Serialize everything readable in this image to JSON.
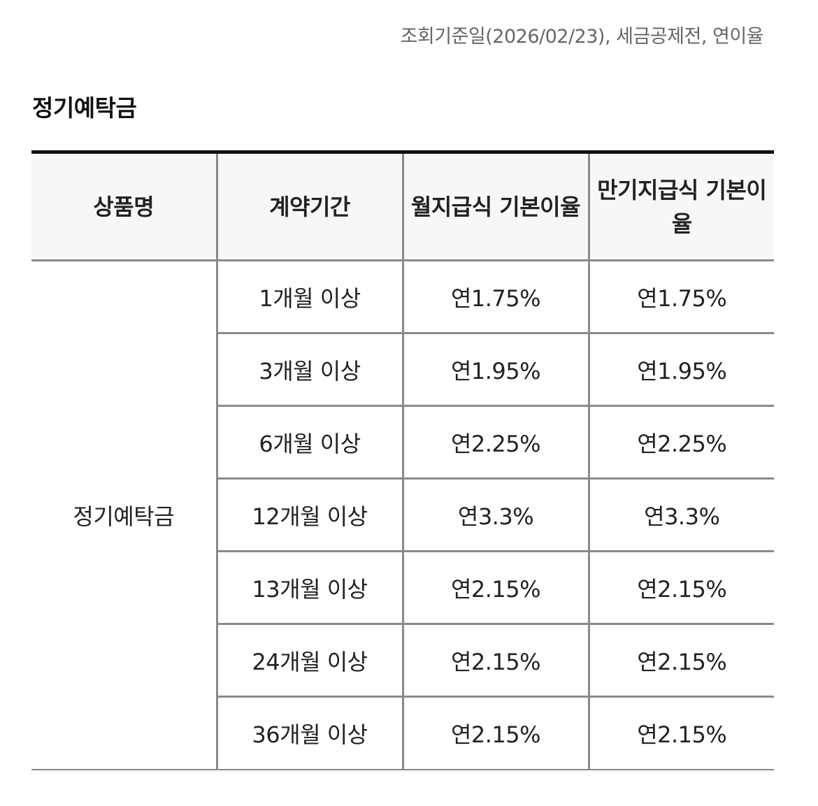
{
  "header": {
    "reference_note": "조회기준일(2026/02/23), 세금공제전, 연이율"
  },
  "section": {
    "title": "정기예탁금"
  },
  "table": {
    "columns": [
      "상품명",
      "계약기간",
      "월지급식 기본이율",
      "만기지급식 기본이율"
    ],
    "product_name": "정기예탁금",
    "rows": [
      {
        "period": "1개월 이상",
        "monthly_rate": "연1.75%",
        "maturity_rate": "연1.75%"
      },
      {
        "period": "3개월 이상",
        "monthly_rate": "연1.95%",
        "maturity_rate": "연1.95%"
      },
      {
        "period": "6개월 이상",
        "monthly_rate": "연2.25%",
        "maturity_rate": "연2.25%"
      },
      {
        "period": "12개월 이상",
        "monthly_rate": "연3.3%",
        "maturity_rate": "연3.3%"
      },
      {
        "period": "13개월 이상",
        "monthly_rate": "연2.15%",
        "maturity_rate": "연2.15%"
      },
      {
        "period": "24개월 이상",
        "monthly_rate": "연2.15%",
        "maturity_rate": "연2.15%"
      },
      {
        "period": "36개월 이상",
        "monthly_rate": "연2.15%",
        "maturity_rate": "연2.15%"
      }
    ]
  },
  "colors": {
    "top_rule": "#111111",
    "grid_line": "#8a8a8a",
    "header_bg": "#f7f7f7",
    "note_text": "#666666"
  }
}
